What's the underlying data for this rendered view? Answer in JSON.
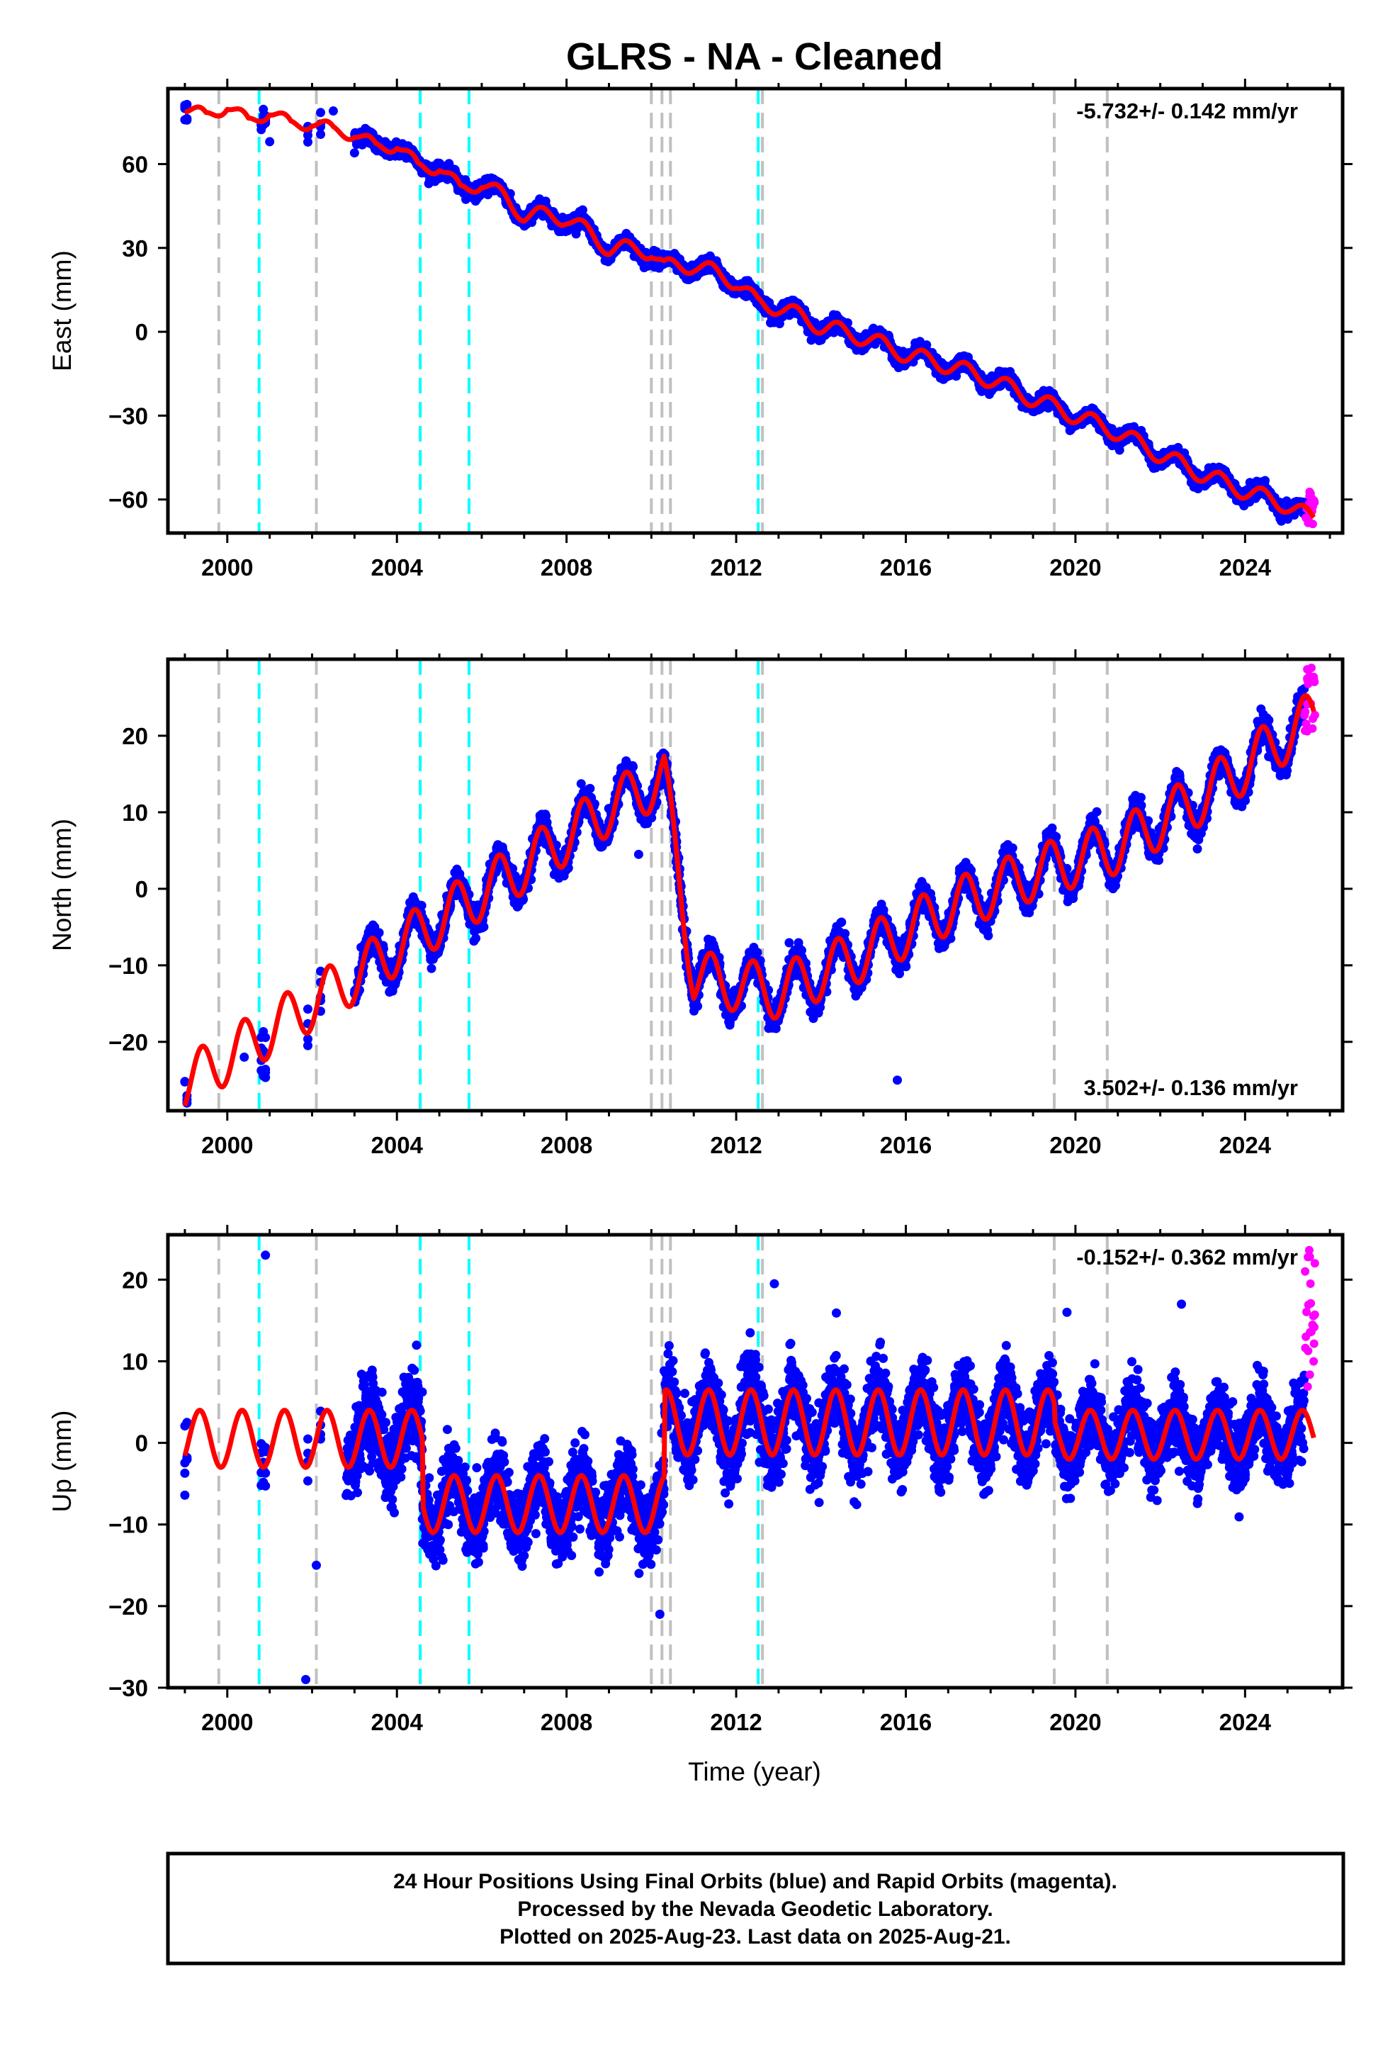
{
  "title": "GLRS  - NA - Cleaned",
  "x_axis_label": "Time (year)",
  "x_ticks": [
    2000,
    2004,
    2008,
    2012,
    2016,
    2020,
    2024
  ],
  "caption": [
    "24 Hour Positions Using Final Orbits (blue) and Rapid Orbits (magenta).",
    "Processed by the Nevada Geodetic Laboratory.",
    "Plotted on 2025-Aug-23. Last data on 2025-Aug-21."
  ],
  "colors": {
    "final_orbits": "#0000ff",
    "rapid_orbits": "#ff00ff",
    "model_fit": "#ff0000",
    "equipment_change": "#c0c0c0",
    "earthquake": "#00ffff"
  },
  "chart_data": [
    {
      "type": "scatter",
      "component": "east",
      "ylabel": "East (mm)",
      "xlim": [
        1998.6,
        2026.3
      ],
      "ylim": [
        -72,
        87
      ],
      "y_ticks": [
        -60,
        -30,
        0,
        30,
        60
      ],
      "rate_text": "-5.732+/- 0.142 mm/yr",
      "rate_position": "top-right",
      "trend": {
        "start": [
          1999.0,
          81
        ],
        "end": [
          2025.6,
          -67
        ]
      },
      "model_fit": {
        "x": [
          1999.0,
          1999.5,
          2000.0,
          2000.5,
          2001.0,
          2001.5,
          2002.0,
          2002.5,
          2003.0,
          2003.5,
          2004.0,
          2004.5,
          2005.0,
          2005.5,
          2006.0,
          2007.0,
          2008.0,
          2009.0,
          2010.0,
          2010.3,
          2011.0,
          2012.0,
          2012.5,
          2013.0,
          2014.0,
          2015.0,
          2016.0,
          2017.0,
          2018.0,
          2019.0,
          2020.0,
          2021.0,
          2022.0,
          2023.0,
          2024.0,
          2025.0,
          2025.6
        ],
        "y": [
          81,
          76,
          82,
          74,
          80,
          73,
          76,
          71,
          72,
          65,
          68,
          58,
          60,
          50,
          54,
          42,
          41,
          30,
          29,
          23,
          24,
          18,
          10,
          9,
          2,
          -2,
          -8,
          -12,
          -17,
          -24,
          -30,
          -36,
          -44,
          -51,
          -57,
          -62,
          -67
        ]
      },
      "blue_seasonal_amplitude": 3.0,
      "blue_scatter": 2.2,
      "outliers": [
        [
          2001.0,
          68
        ],
        [
          2003.0,
          64
        ],
        [
          2002.5,
          79
        ]
      ],
      "rapid": {
        "x_range": [
          2025.4,
          2025.65
        ],
        "y_range": [
          -69,
          -57
        ]
      },
      "equipment_changes": [
        1999.8,
        2002.1,
        2010.0,
        2010.25,
        2010.45,
        2012.62,
        2019.5,
        2020.75
      ],
      "earthquakes": [
        2000.75,
        2004.55,
        2005.7,
        2012.52
      ]
    },
    {
      "type": "scatter",
      "component": "north",
      "ylabel": "North (mm)",
      "xlim": [
        1998.6,
        2026.3
      ],
      "ylim": [
        -29,
        30
      ],
      "y_ticks": [
        -20,
        -10,
        0,
        10,
        20
      ],
      "rate_text": "3.502+/- 0.136 mm/yr",
      "rate_position": "bottom-right",
      "trend": {
        "start": [
          1999.0,
          -25.5
        ],
        "end": [
          2010.3,
          14.5
        ]
      },
      "trend2": {
        "start": [
          2010.3,
          -8.5
        ],
        "end": [
          2025.6,
          22.5
        ]
      },
      "offset_epoch": 2010.3,
      "model_fit": {
        "x": [
          1999.0,
          2001.0,
          2003.0,
          2005.0,
          2007.0,
          2009.0,
          2010.3,
          2011.0,
          2013.0,
          2015.0,
          2017.0,
          2019.0,
          2021.0,
          2023.0,
          2025.6
        ],
        "y": [
          -25.5,
          -18.5,
          -11.5,
          -4.0,
          3.0,
          10.5,
          14.5,
          -11.5,
          -13.5,
          -8.5,
          -2.5,
          2.0,
          5.5,
          12.0,
          22.5
        ]
      },
      "blue_seasonal_amplitude": 3.5,
      "blue_scatter": 1.6,
      "outliers": [
        [
          2009.7,
          4.5
        ],
        [
          2015.8,
          -25
        ],
        [
          2000.4,
          -22
        ],
        [
          2002.2,
          -16
        ]
      ],
      "rapid": {
        "x_range": [
          2025.4,
          2025.65
        ],
        "y_range": [
          20,
          29
        ]
      },
      "equipment_changes": [
        1999.8,
        2002.1,
        2010.0,
        2010.25,
        2010.45,
        2012.62,
        2019.5,
        2020.75
      ],
      "earthquakes": [
        2000.75,
        2004.55,
        2005.7,
        2012.52
      ]
    },
    {
      "type": "scatter",
      "component": "up",
      "ylabel": "Up (mm)",
      "xlim": [
        1998.6,
        2026.3
      ],
      "ylim": [
        -30,
        25.5
      ],
      "y_ticks": [
        -30,
        -20,
        -10,
        0,
        10,
        20
      ],
      "rate_text": "-0.152+/- 0.362 mm/yr",
      "rate_position": "top-right",
      "trend": {
        "start": [
          1999.0,
          0
        ],
        "end": [
          2025.6,
          0
        ]
      },
      "segments": [
        {
          "x_range": [
            1999.0,
            2004.6
          ],
          "level": 0.5,
          "amp": 3.5,
          "scatter": 4.5
        },
        {
          "x_range": [
            2004.6,
            2010.3
          ],
          "level": -7.5,
          "amp": 3.5,
          "scatter": 4.0
        },
        {
          "x_range": [
            2010.3,
            2019.5
          ],
          "level": 2.5,
          "amp": 4.0,
          "scatter": 4.0
        },
        {
          "x_range": [
            2019.5,
            2025.6
          ],
          "level": 1.0,
          "amp": 3.0,
          "scatter": 3.8
        }
      ],
      "outliers": [
        [
          2000.9,
          23
        ],
        [
          2001.85,
          -29
        ],
        [
          2010.2,
          -21
        ],
        [
          2019.8,
          16
        ],
        [
          2022.5,
          17
        ],
        [
          2012.9,
          19.5
        ],
        [
          2002.1,
          -15
        ]
      ],
      "rapid": {
        "x_range": [
          2025.4,
          2025.65
        ],
        "y_range": [
          5,
          24
        ]
      },
      "equipment_changes": [
        1999.8,
        2002.1,
        2010.0,
        2010.25,
        2010.45,
        2012.62,
        2019.5,
        2020.75
      ],
      "earthquakes": [
        2000.75,
        2004.55,
        2005.7,
        2012.52
      ]
    }
  ]
}
